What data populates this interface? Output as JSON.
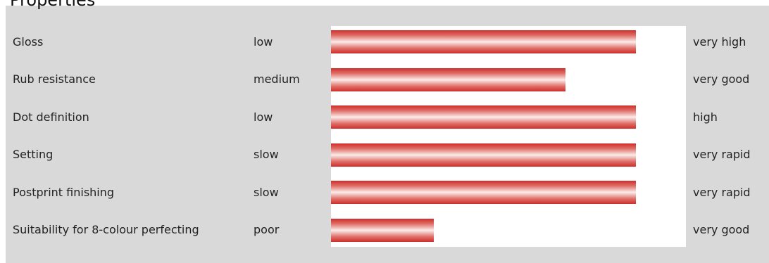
{
  "title": "Properties",
  "chart_data": {
    "type": "bar",
    "orientation": "horizontal",
    "title": "Properties",
    "xlim": [
      0,
      1
    ],
    "grid": false,
    "legend": "none",
    "rows": [
      {
        "property": "Gloss",
        "low_label": "low",
        "high_label": "very high",
        "value": 0.86
      },
      {
        "property": "Rub resistance",
        "low_label": "medium",
        "high_label": "very good",
        "value": 0.66
      },
      {
        "property": "Dot definition",
        "low_label": "low",
        "high_label": "high",
        "value": 0.86
      },
      {
        "property": "Setting",
        "low_label": "slow",
        "high_label": "very rapid",
        "value": 0.86
      },
      {
        "property": "Postprint finishing",
        "low_label": "slow",
        "high_label": "very rapid",
        "value": 0.86
      },
      {
        "property": "Suitability for 8-colour perfecting",
        "low_label": "poor",
        "high_label": "very good",
        "value": 0.29
      }
    ],
    "colors": {
      "panel": "#d9d9d9",
      "bar_edge": "#cf2d2a",
      "bar_highlight": "#fbecea"
    }
  }
}
